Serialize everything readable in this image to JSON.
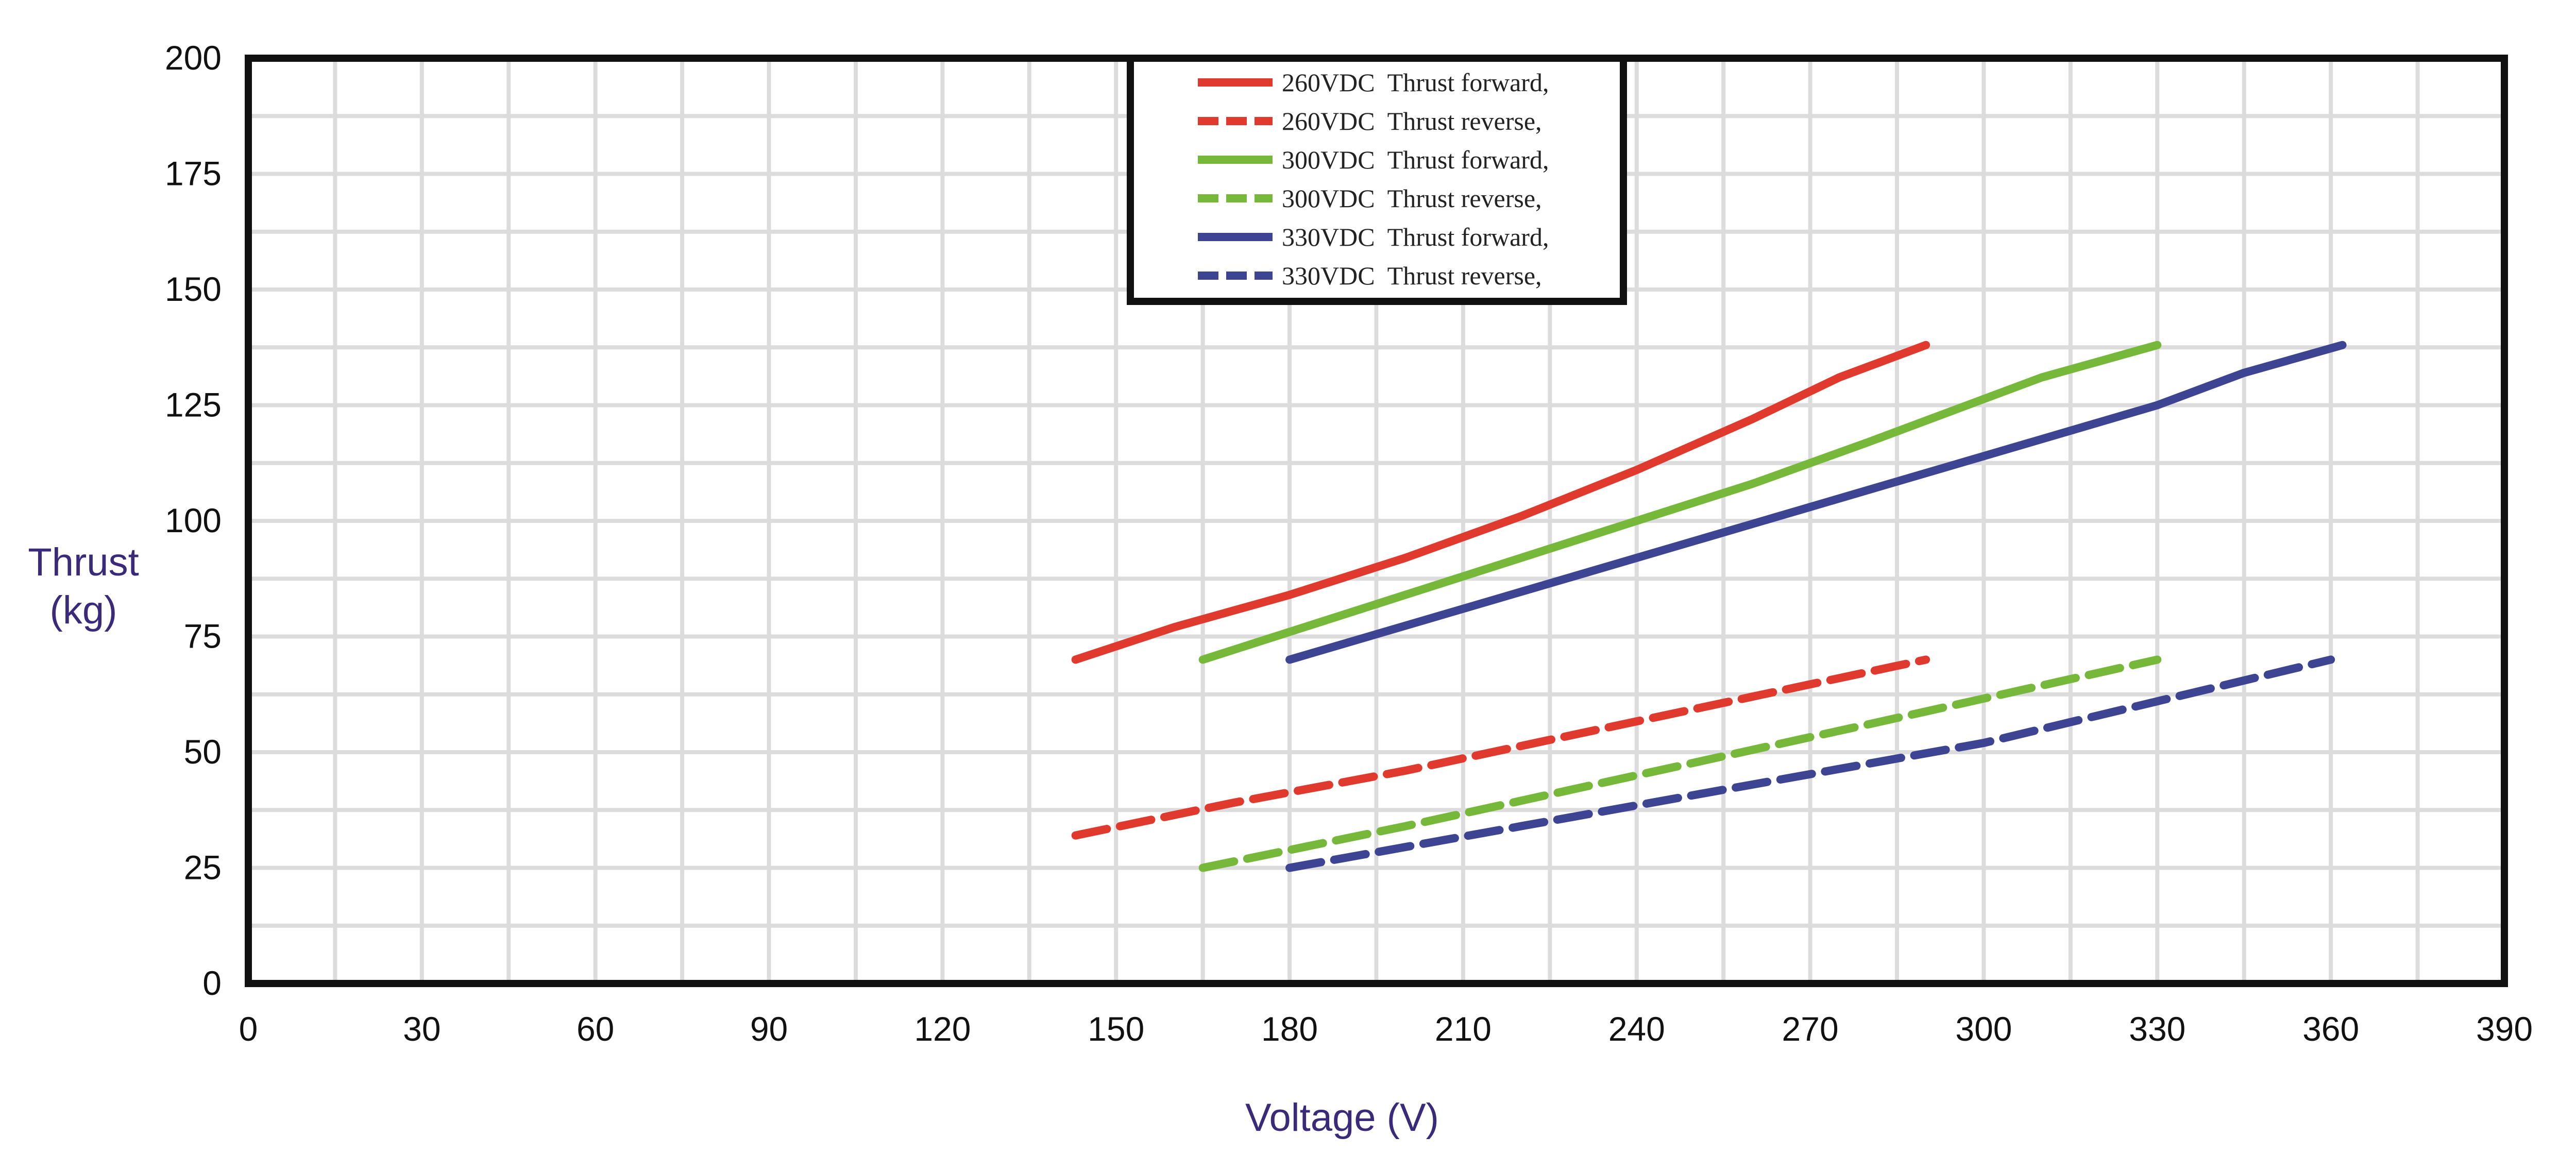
{
  "chart_data": {
    "type": "line",
    "title": "",
    "xlabel": "Voltage (V)",
    "ylabel_lines": [
      "Thrust",
      "(kg)"
    ],
    "xlim": [
      0,
      390
    ],
    "ylim": [
      0,
      200
    ],
    "x_ticks": [
      0,
      30,
      60,
      90,
      120,
      150,
      180,
      210,
      240,
      270,
      300,
      330,
      360,
      390
    ],
    "y_ticks": [
      0,
      25,
      50,
      75,
      100,
      125,
      150,
      175,
      200
    ],
    "grid": true,
    "legend_position": "top-center",
    "series": [
      {
        "name": "260VDC  Thrust forward,",
        "color": "#e03a2f",
        "dash": "solid",
        "x": [
          143,
          160,
          180,
          200,
          220,
          240,
          260,
          275,
          290
        ],
        "y": [
          70,
          77,
          84,
          92,
          101,
          111,
          122,
          131,
          138
        ]
      },
      {
        "name": "260VDC  Thrust reverse,",
        "color": "#e03a2f",
        "dash": "dashed",
        "x": [
          143,
          170,
          200,
          230,
          260,
          290
        ],
        "y": [
          32,
          39,
          46,
          54,
          62,
          70
        ]
      },
      {
        "name": "300VDC  Thrust forward,",
        "color": "#76b83a",
        "dash": "solid",
        "x": [
          165,
          180,
          200,
          220,
          240,
          260,
          280,
          295,
          310,
          330
        ],
        "y": [
          70,
          76,
          84,
          92,
          100,
          108,
          117,
          124,
          131,
          138
        ]
      },
      {
        "name": "300VDC  Thrust reverse,",
        "color": "#76b83a",
        "dash": "dashed",
        "x": [
          165,
          200,
          240,
          280,
          330
        ],
        "y": [
          25,
          34,
          45,
          56,
          70
        ]
      },
      {
        "name": "330VDC  Thrust forward,",
        "color": "#3d4592",
        "dash": "solid",
        "x": [
          180,
          210,
          240,
          270,
          300,
          330,
          345,
          362
        ],
        "y": [
          70,
          81,
          92,
          103,
          114,
          125,
          132,
          138
        ]
      },
      {
        "name": "330VDC  Thrust reverse,",
        "color": "#3d4592",
        "dash": "dashed",
        "x": [
          180,
          220,
          260,
          300,
          330,
          360
        ],
        "y": [
          25,
          34,
          43,
          52,
          61,
          70
        ]
      }
    ]
  }
}
